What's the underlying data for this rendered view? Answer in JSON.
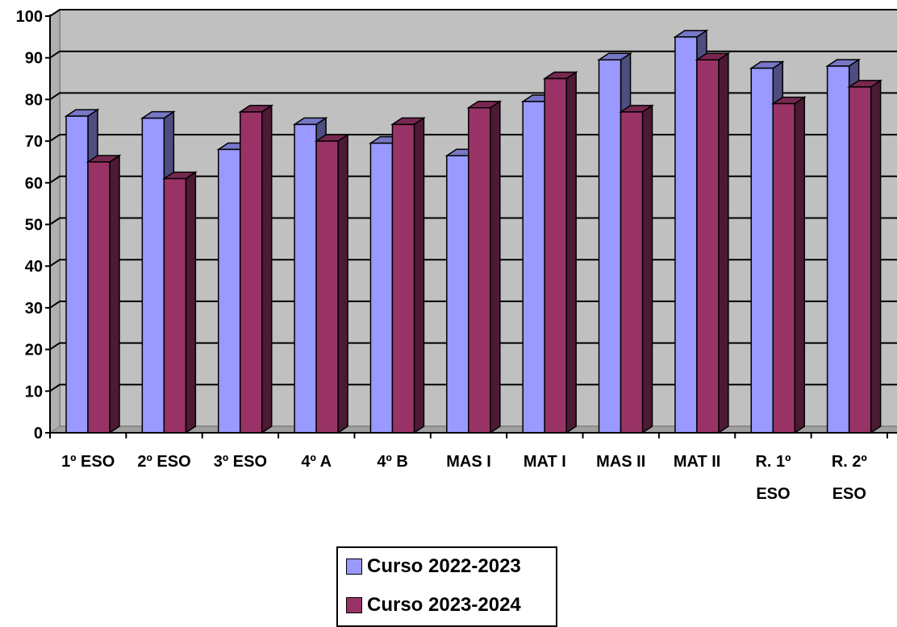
{
  "chart_data": {
    "type": "bar",
    "categories": [
      [
        "1º ESO"
      ],
      [
        "2º ESO"
      ],
      [
        "3º ESO"
      ],
      [
        "4º A"
      ],
      [
        "4º B"
      ],
      [
        "MAS I"
      ],
      [
        "MAT I"
      ],
      [
        "MAS II"
      ],
      [
        "MAT II"
      ],
      [
        "R. 1º",
        "ESO"
      ],
      [
        "R. 2º",
        "ESO"
      ]
    ],
    "series": [
      {
        "name": "Curso 2022-2023",
        "color": "#9999FF",
        "values": [
          76,
          75.5,
          68,
          74,
          69.5,
          66.5,
          79.5,
          89.5,
          95,
          87.5,
          88
        ]
      },
      {
        "name": "Curso 2023-2024",
        "color": "#993366",
        "values": [
          65,
          61,
          77,
          70,
          74,
          78,
          85,
          77,
          89.5,
          79,
          83
        ]
      }
    ],
    "ylim": [
      0,
      100
    ],
    "yticks": [
      "0",
      "10",
      "20",
      "30",
      "40",
      "50",
      "60",
      "70",
      "80",
      "90",
      "100"
    ],
    "grid": true,
    "legend_position": "bottom",
    "plot_background": "#C0C0C0"
  }
}
